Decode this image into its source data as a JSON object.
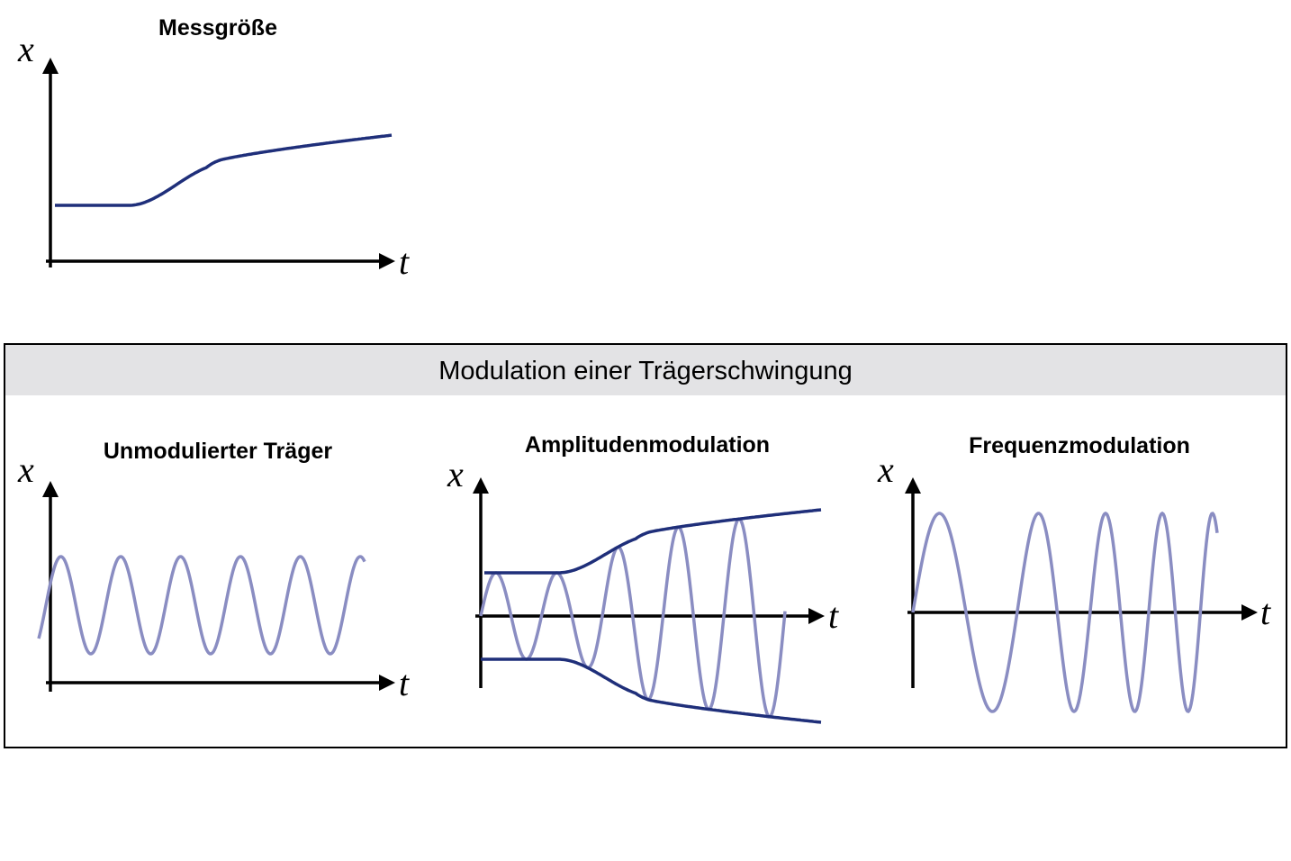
{
  "colors": {
    "signal": "#1f2f7a",
    "carrier": "#8a8dc2",
    "banner_fill": "#e3e3e5",
    "frame": "#000000"
  },
  "measurand_panel": {
    "title": "Messgröße",
    "y_label": "x",
    "x_label": "t"
  },
  "modulation_box": {
    "title": "Modulation einer Trägerschwingung",
    "panels": [
      {
        "title": "Unmodulierter Träger",
        "y_label": "x",
        "x_label": "t"
      },
      {
        "title": "Amplitudenmodulation",
        "y_label": "x",
        "x_label": "t"
      },
      {
        "title": "Frequenzmodulation",
        "y_label": "x",
        "x_label": "t"
      }
    ]
  }
}
